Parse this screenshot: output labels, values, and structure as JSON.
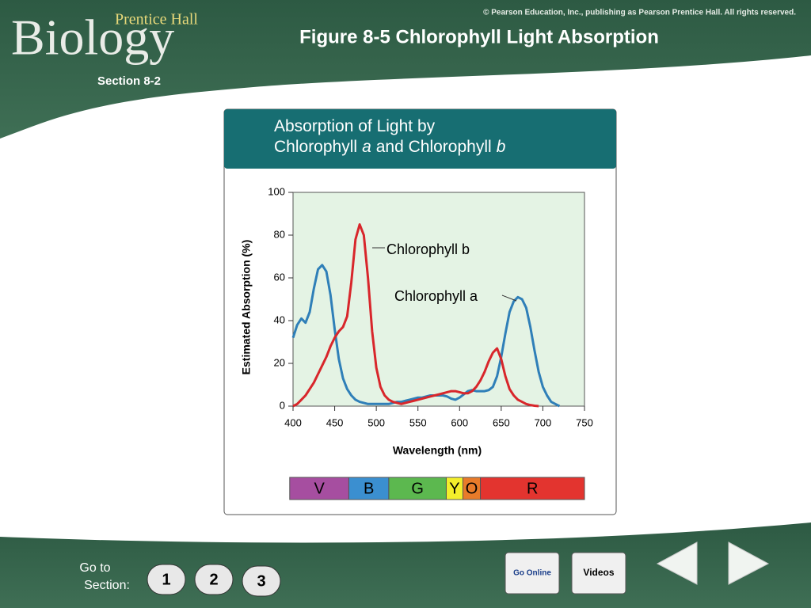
{
  "header": {
    "publisher": "Prentice Hall",
    "logo": "Biology",
    "copyright": "© Pearson Education, Inc., publishing as Pearson Prentice Hall. All rights reserved.",
    "title": "Figure 8-5 Chlorophyll Light Absorption",
    "section": "Section 8-2"
  },
  "chart_data": {
    "type": "line",
    "title": {
      "line1": "Absorption of Light by",
      "line2": [
        "Chlorophyll",
        "a",
        "and Chlorophyll",
        "b"
      ]
    },
    "x_label": "Wavelength (nm)",
    "y_label": "Estimated Absorption (%)",
    "x": [
      400,
      405,
      410,
      415,
      420,
      425,
      430,
      435,
      440,
      445,
      450,
      455,
      460,
      465,
      470,
      475,
      480,
      485,
      490,
      495,
      500,
      505,
      510,
      515,
      520,
      525,
      530,
      535,
      540,
      545,
      550,
      555,
      560,
      565,
      570,
      575,
      580,
      585,
      590,
      595,
      600,
      605,
      610,
      615,
      620,
      625,
      630,
      635,
      640,
      645,
      650,
      655,
      660,
      665,
      670,
      675,
      680,
      685,
      690,
      695,
      700,
      705,
      710,
      715,
      720
    ],
    "series": [
      {
        "name": "Chlorophyll a",
        "color": "#2f7fb8",
        "values": [
          32,
          38,
          41,
          39,
          44,
          55,
          64,
          66,
          63,
          52,
          36,
          22,
          13,
          8,
          5,
          3,
          2,
          1.5,
          1,
          1,
          1,
          1,
          1,
          1,
          1.5,
          2,
          2,
          2.5,
          3,
          3.5,
          4,
          4,
          4.5,
          5,
          5,
          5,
          5,
          4.5,
          3.5,
          3,
          4,
          5.5,
          7,
          7.5,
          7,
          7,
          7,
          7.5,
          9,
          14,
          23,
          34,
          44,
          49,
          51,
          50,
          46,
          37,
          26,
          16,
          9,
          5,
          2,
          1,
          0
        ]
      },
      {
        "name": "Chlorophyll b",
        "color": "#d8262b",
        "values": [
          0,
          1,
          3,
          5,
          8,
          11,
          15,
          19,
          23,
          28,
          32,
          35,
          37,
          42,
          58,
          78,
          85,
          80,
          60,
          35,
          18,
          9,
          5,
          3,
          2,
          1.5,
          1,
          1.5,
          2,
          2.5,
          3,
          3.5,
          4,
          4.5,
          5,
          5.5,
          6,
          6.5,
          7,
          7,
          6.5,
          6,
          6,
          7,
          9,
          12,
          16,
          21,
          25,
          27,
          22,
          14,
          8,
          5,
          3,
          2,
          1,
          0.5,
          0.2,
          0,
          null,
          null,
          null,
          null,
          null
        ]
      }
    ],
    "xlim": [
      400,
      750
    ],
    "xticks": [
      400,
      450,
      500,
      550,
      600,
      650,
      700,
      750
    ],
    "ylim": [
      0,
      100
    ],
    "yticks": [
      0,
      20,
      40,
      60,
      80,
      100
    ],
    "grid": false,
    "spectrum": [
      {
        "label": "V",
        "color": "#a64ea0",
        "from": 396,
        "to": 467
      },
      {
        "label": "B",
        "color": "#3b8fd0",
        "from": 467,
        "to": 515
      },
      {
        "label": "G",
        "color": "#5cb84f",
        "from": 515,
        "to": 584
      },
      {
        "label": "Y",
        "color": "#f3ee2b",
        "from": 584,
        "to": 604
      },
      {
        "label": "O",
        "color": "#e87b2a",
        "from": 604,
        "to": 625
      },
      {
        "label": "R",
        "color": "#e3342f",
        "from": 625,
        "to": 750
      }
    ]
  },
  "footer": {
    "goto": [
      "Go to",
      "Section:"
    ],
    "sections": [
      "1",
      "2",
      "3"
    ],
    "go_online": "Go Online",
    "videos": "Videos"
  }
}
